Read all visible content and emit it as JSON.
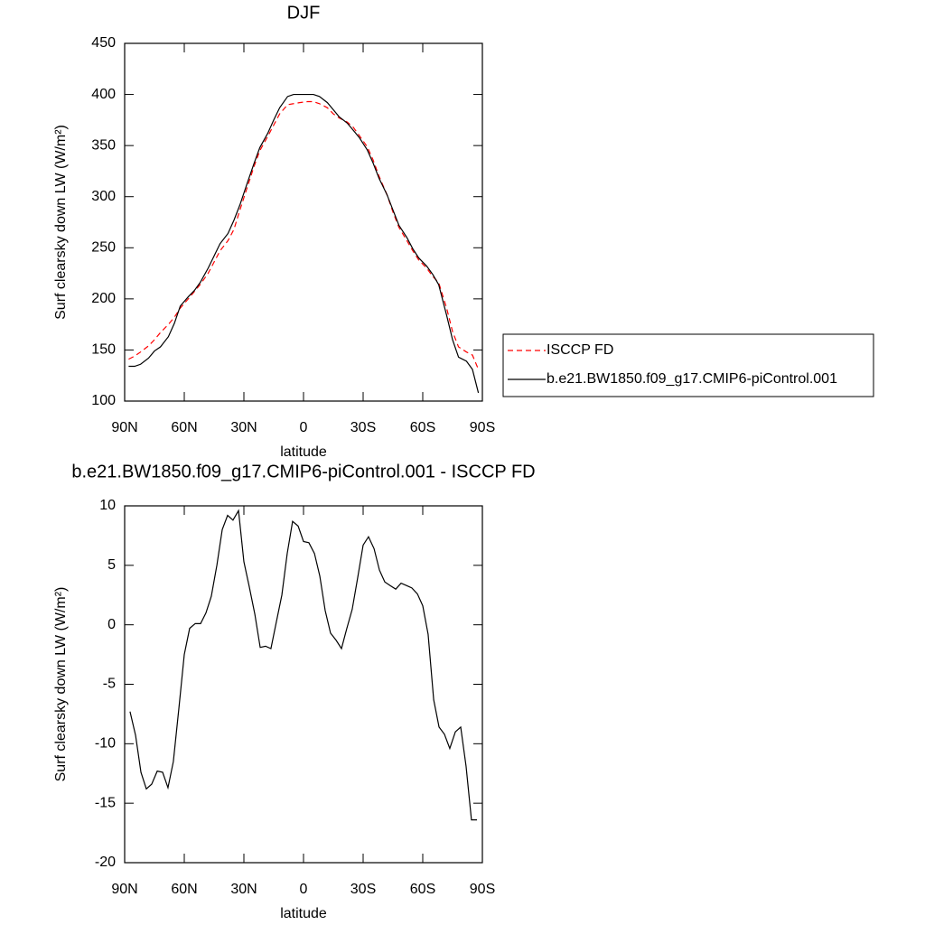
{
  "chart_data": [
    {
      "type": "line",
      "title": "DJF",
      "xlabel": "latitude",
      "ylabel": "Surf clearsky down LW (W/m²)",
      "xlim": [
        90,
        -90
      ],
      "ylim": [
        100,
        450
      ],
      "xticks": [
        {
          "value": 90,
          "label": "90N"
        },
        {
          "value": 60,
          "label": "60N"
        },
        {
          "value": 30,
          "label": "30N"
        },
        0,
        {
          "value": -30,
          "label": "30S"
        },
        {
          "value": -60,
          "label": "60S"
        },
        {
          "value": -90,
          "label": "90S"
        }
      ],
      "yticks": [
        100,
        150,
        200,
        250,
        300,
        350,
        400,
        450
      ],
      "legend": "right",
      "x": [
        88,
        85,
        82,
        78,
        75,
        72,
        68,
        65,
        62,
        58,
        55,
        52,
        48,
        45,
        42,
        38,
        35,
        32,
        28,
        25,
        22,
        18,
        15,
        12,
        8,
        5,
        2,
        -2,
        -5,
        -8,
        -12,
        -15,
        -18,
        -22,
        -25,
        -28,
        -32,
        -35,
        -38,
        -42,
        -45,
        -48,
        -52,
        -55,
        -58,
        -62,
        -65,
        -68,
        -72,
        -75,
        -78,
        -82,
        -85,
        -88
      ],
      "series": [
        {
          "name": "ISCCP FD",
          "color": "#ff0000",
          "line_style": "dashed",
          "values": [
            141,
            144,
            148,
            154,
            160,
            167,
            175,
            182,
            191,
            200,
            207,
            214,
            225,
            236,
            247,
            257,
            268,
            287,
            311,
            329,
            345,
            359,
            370,
            381,
            390,
            391,
            392,
            393,
            393,
            391,
            387,
            381,
            377,
            373,
            368,
            360,
            349,
            336,
            320,
            302,
            285,
            270,
            257,
            247,
            238,
            230,
            222,
            216,
            191,
            168,
            153,
            148,
            145,
            131
          ]
        },
        {
          "name": "b.e21.BW1850.f09_g17.CMIP6-piControl.001",
          "color": "#000000",
          "line_style": "solid",
          "values": [
            134,
            134,
            136,
            142,
            149,
            153,
            163,
            176,
            193,
            202,
            208,
            216,
            230,
            242,
            254,
            264,
            277,
            292,
            315,
            332,
            348,
            362,
            375,
            387,
            398,
            400,
            400,
            400,
            400,
            398,
            392,
            385,
            378,
            372,
            365,
            358,
            346,
            333,
            318,
            302,
            287,
            272,
            260,
            249,
            240,
            232,
            224,
            214,
            184,
            160,
            143,
            139,
            131,
            108
          ]
        }
      ]
    },
    {
      "type": "line",
      "title": "b.e21.BW1850.f09_g17.CMIP6-piControl.001 - ISCCP FD",
      "xlabel": "latitude",
      "ylabel": "Surf clearsky down LW (W/m²)",
      "xlim": [
        90,
        -90
      ],
      "ylim": [
        -20,
        10
      ],
      "xticks": [
        {
          "value": 90,
          "label": "90N"
        },
        {
          "value": 60,
          "label": "60N"
        },
        {
          "value": 30,
          "label": "30N"
        },
        0,
        {
          "value": -30,
          "label": "30S"
        },
        {
          "value": -60,
          "label": "60S"
        },
        {
          "value": -90,
          "label": "90S"
        }
      ],
      "yticks": [
        -20,
        -15,
        -10,
        -5,
        0,
        5,
        10
      ],
      "x": [
        87.3,
        84.5,
        81.8,
        79.1,
        76.4,
        73.6,
        70.9,
        68.2,
        65.5,
        62.7,
        60,
        57.3,
        54.5,
        51.8,
        49.1,
        46.4,
        43.6,
        40.9,
        38.2,
        35.5,
        32.7,
        30,
        27.3,
        24.5,
        21.8,
        19.1,
        16.4,
        13.6,
        10.9,
        8.2,
        5.5,
        2.7,
        0,
        -2.7,
        -5.5,
        -8.2,
        -10.9,
        -13.6,
        -16.4,
        -19.1,
        -21.8,
        -24.5,
        -27.3,
        -30,
        -32.7,
        -35.5,
        -38.2,
        -40.9,
        -43.6,
        -46.4,
        -49.1,
        -51.8,
        -54.5,
        -57.3,
        -60,
        -62.7,
        -65.5,
        -68.2,
        -70.9,
        -73.6,
        -76.4,
        -79.1,
        -81.8,
        -84.5,
        -87.3
      ],
      "series": [
        {
          "color": "#000000",
          "line_style": "solid",
          "values": [
            -7.3,
            -9.3,
            -12.4,
            -13.8,
            -13.4,
            -12.3,
            -12.4,
            -13.7,
            -11.5,
            -7,
            -2.5,
            -0.3,
            0.1,
            0.1,
            1,
            2.4,
            5,
            8,
            9.2,
            8.8,
            9.6,
            5.3,
            3.2,
            0.9,
            -1.9,
            -1.8,
            -2,
            0.3,
            2.5,
            6,
            8.7,
            8.3,
            7,
            6.9,
            6,
            4.1,
            1.2,
            -0.7,
            -1.3,
            -2,
            -0.3,
            1.3,
            4,
            6.7,
            7.4,
            6.4,
            4.6,
            3.6,
            3.3,
            3,
            3.5,
            3.3,
            3.1,
            2.6,
            1.6,
            -0.8,
            -6.3,
            -8.6,
            -9.2,
            -10.4,
            -9,
            -8.6,
            -11.9,
            -16.4,
            -16.4
          ]
        }
      ]
    }
  ]
}
